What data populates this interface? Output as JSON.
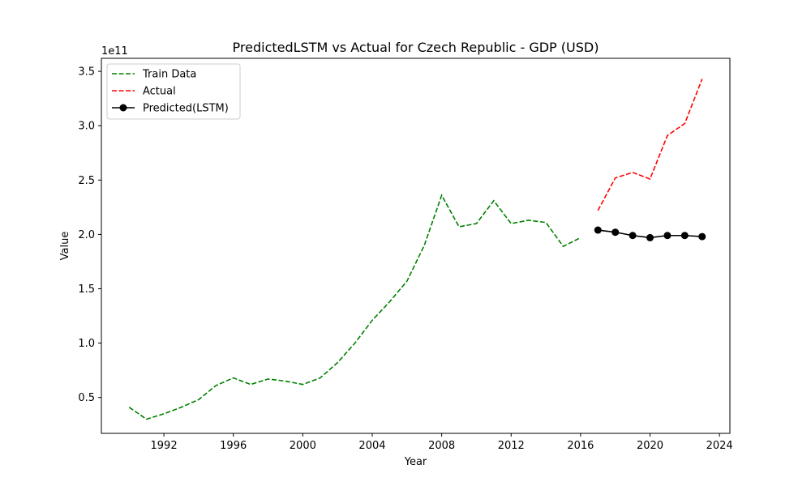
{
  "chart_data": {
    "type": "line",
    "title": "PredictedLSTM vs Actual for Czech Republic - GDP (USD)",
    "xlabel": "Year",
    "ylabel": "Value",
    "y_offset_label": "1e11",
    "xlim": [
      1988.4,
      2024.6
    ],
    "ylim": [
      0.17,
      3.62
    ],
    "x_ticks": [
      1992,
      1996,
      2000,
      2004,
      2008,
      2012,
      2016,
      2020,
      2024
    ],
    "x_tick_labels": [
      "1992",
      "1996",
      "2000",
      "2004",
      "2008",
      "2012",
      "2016",
      "2020",
      "2024"
    ],
    "y_ticks": [
      0.5,
      1.0,
      1.5,
      2.0,
      2.5,
      3.0,
      3.5
    ],
    "y_tick_labels": [
      "0.5",
      "1.0",
      "1.5",
      "2.0",
      "2.5",
      "3.0",
      "3.5"
    ],
    "grid": false,
    "legend_position": "top-left",
    "series": [
      {
        "name": "Train Data",
        "color": "#008000",
        "style": "dashed",
        "marker": "none",
        "x": [
          1990,
          1991,
          1992,
          1993,
          1994,
          1995,
          1996,
          1997,
          1998,
          1999,
          2000,
          2001,
          2002,
          2003,
          2004,
          2005,
          2006,
          2007,
          2008,
          2009,
          2010,
          2011,
          2012,
          2013,
          2014,
          2015,
          2016
        ],
        "y": [
          0.41,
          0.3,
          0.35,
          0.41,
          0.48,
          0.61,
          0.68,
          0.62,
          0.67,
          0.65,
          0.62,
          0.68,
          0.82,
          1.0,
          1.21,
          1.38,
          1.57,
          1.9,
          2.36,
          2.07,
          2.1,
          2.31,
          2.1,
          2.13,
          2.11,
          1.89,
          1.97
        ]
      },
      {
        "name": "Actual",
        "color": "#ff0000",
        "style": "dashed",
        "marker": "none",
        "x": [
          2017,
          2018,
          2019,
          2020,
          2021,
          2022,
          2023
        ],
        "y": [
          2.22,
          2.52,
          2.57,
          2.51,
          2.91,
          3.02,
          3.43
        ]
      },
      {
        "name": "Predicted(LSTM)",
        "color": "#000000",
        "style": "solid",
        "marker": "circle",
        "x": [
          2017,
          2018,
          2019,
          2020,
          2021,
          2022,
          2023
        ],
        "y": [
          2.04,
          2.02,
          1.99,
          1.97,
          1.99,
          1.99,
          1.98
        ]
      }
    ]
  }
}
